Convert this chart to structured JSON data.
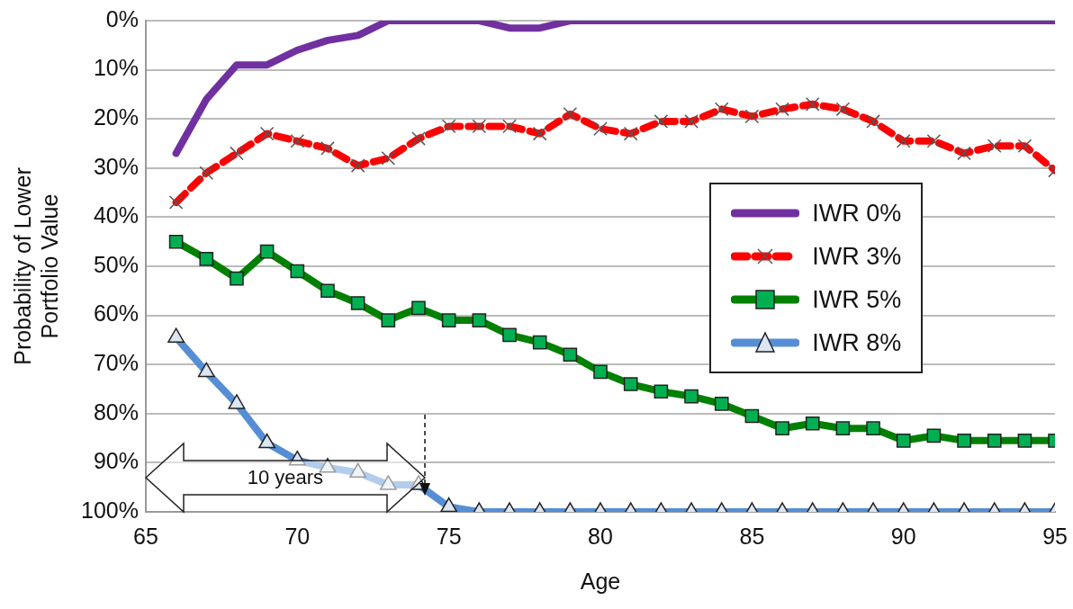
{
  "chart_data": {
    "type": "line",
    "xlabel": "Age",
    "ylabel": "Probability of Lower Portfolio Value",
    "x": [
      66,
      67,
      68,
      69,
      70,
      71,
      72,
      73,
      74,
      75,
      76,
      77,
      78,
      79,
      80,
      81,
      82,
      83,
      84,
      85,
      86,
      87,
      88,
      89,
      90,
      91,
      92,
      93,
      94,
      95
    ],
    "series": [
      {
        "name": "IWR 0%",
        "color": "#7030a0",
        "values": [
          27,
          16,
          9,
          9,
          6,
          4,
          3,
          0,
          0,
          0,
          0,
          1.5,
          1.5,
          0,
          0,
          0,
          0,
          0,
          0,
          0,
          0,
          0,
          0,
          0,
          0,
          0,
          0,
          0,
          0,
          0
        ]
      },
      {
        "name": "IWR 3%",
        "color": "#ff0000",
        "marker": "cross",
        "line_style": "dashed",
        "values": [
          37,
          31,
          27,
          23,
          24.5,
          26,
          29.5,
          28,
          24,
          21.5,
          21.5,
          21.5,
          23,
          19,
          22,
          23,
          20.5,
          20.5,
          18,
          19.5,
          18,
          17,
          18,
          20.5,
          24.5,
          24.5,
          27,
          25.5,
          25.5,
          30.5
        ]
      },
      {
        "name": "IWR 5%",
        "color": "#008000",
        "marker": "square",
        "values": [
          45,
          48.5,
          52.5,
          47,
          51,
          55,
          57.5,
          61,
          58.5,
          61,
          61,
          64,
          65.5,
          68,
          71.5,
          74,
          75.5,
          76.5,
          78,
          80.5,
          83,
          82,
          83,
          83,
          85.5,
          84.5,
          85.5,
          85.5,
          85.5,
          85.5
        ]
      },
      {
        "name": "IWR 8%",
        "color": "#558ed5",
        "marker": "triangle",
        "values": [
          64.5,
          71.5,
          78,
          86,
          89.5,
          91,
          92,
          94.5,
          94.5,
          99,
          100,
          100,
          100,
          100,
          100,
          100,
          100,
          100,
          100,
          100,
          100,
          100,
          100,
          100,
          100,
          100,
          100,
          100,
          100,
          100
        ]
      }
    ],
    "xlim": [
      65,
      95
    ],
    "xticks": [
      65,
      70,
      75,
      80,
      85,
      90,
      95
    ],
    "ylim": [
      100,
      0
    ],
    "yticks": [
      {
        "value": 0,
        "label": "0%"
      },
      {
        "value": 10,
        "label": "10%"
      },
      {
        "value": 20,
        "label": "20%"
      },
      {
        "value": 30,
        "label": "30%"
      },
      {
        "value": 40,
        "label": "40%"
      },
      {
        "value": 50,
        "label": "50%"
      },
      {
        "value": 60,
        "label": "60%"
      },
      {
        "value": 70,
        "label": "70%"
      },
      {
        "value": 80,
        "label": "80%"
      },
      {
        "value": 90,
        "label": "90%"
      },
      {
        "value": 100,
        "label": "100%"
      }
    ],
    "grid": "y",
    "legend": "right",
    "annotations": [
      "10 years"
    ]
  }
}
